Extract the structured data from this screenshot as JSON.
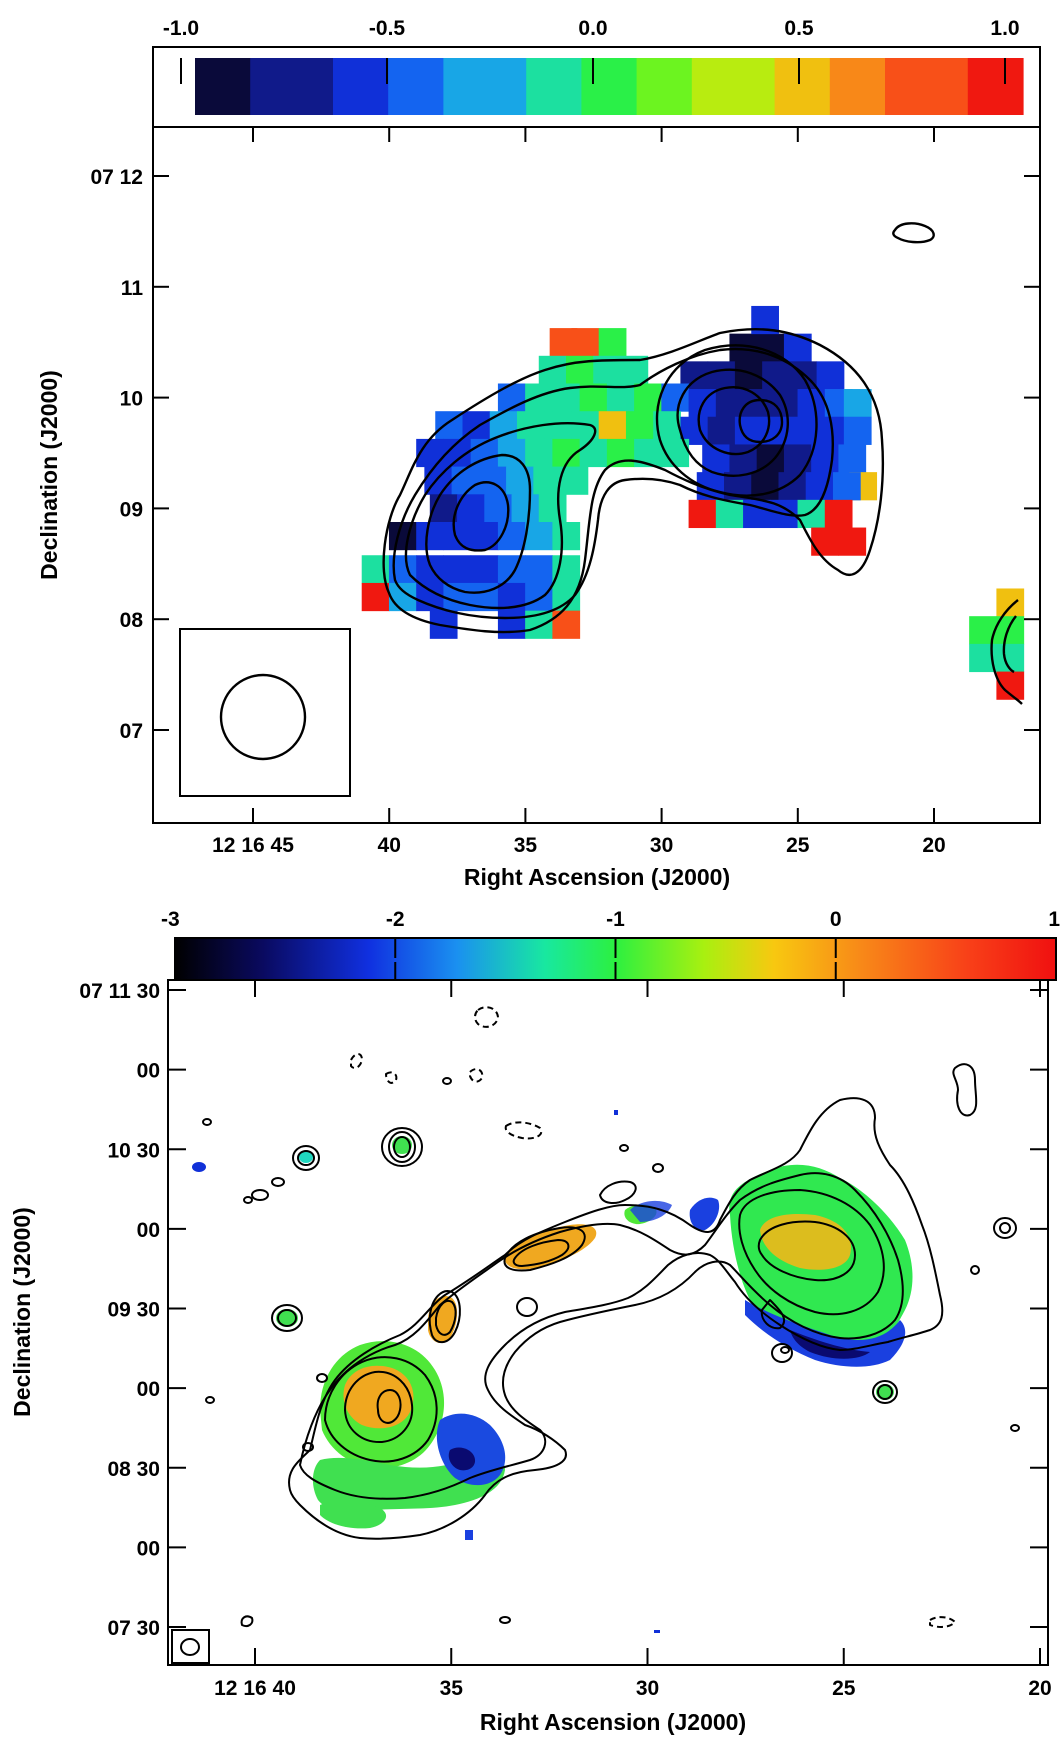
{
  "chart_data": [
    {
      "type": "heatmap",
      "title": "",
      "xlabel": "Right Ascension (J2000)",
      "ylabel": "Declination (J2000)",
      "colorbar": {
        "ticks": [
          "-1.0",
          "-0.5",
          "0.0",
          "0.5",
          "1.0"
        ],
        "tick_values": [
          -1.0,
          -0.5,
          0.0,
          0.5,
          1.0
        ],
        "range": [
          -1.0,
          1.0
        ],
        "colormap": [
          "#0a0a3a",
          "#101a8a",
          "#1030d8",
          "#1464f0",
          "#18a6e6",
          "#1ce0a0",
          "#2af048",
          "#6cf420",
          "#b8ec10",
          "#f0c010",
          "#f88818",
          "#f85018",
          "#f01810"
        ]
      },
      "x_ticks": [
        "12 16 45",
        "40",
        "35",
        "30",
        "25",
        "20"
      ],
      "x_tick_seconds": [
        45,
        40,
        35,
        30,
        25,
        20
      ],
      "xlim_seconds": [
        49,
        17
      ],
      "y_ticks": [
        "07 12",
        "11",
        "10",
        "09",
        "08",
        "07"
      ],
      "y_tick_arcmin": [
        12,
        11,
        10,
        9,
        8,
        7
      ],
      "ylim_arcmin": [
        6.2,
        12.4
      ],
      "grid": false,
      "pixel_map_note": "spectral index values in colorbar units",
      "pixels": [
        [
          33.6,
          10.5,
          0.75
        ],
        [
          32.8,
          10.5,
          0.75
        ],
        [
          31.8,
          10.5,
          0.05
        ],
        [
          34.0,
          10.25,
          -0.1
        ],
        [
          33.0,
          10.25,
          -0.05
        ],
        [
          32.0,
          10.25,
          -0.1
        ],
        [
          31.0,
          10.25,
          -0.15
        ],
        [
          27.0,
          10.45,
          -0.95
        ],
        [
          26.0,
          10.45,
          -0.85
        ],
        [
          25.0,
          10.45,
          -0.6
        ],
        [
          26.2,
          10.7,
          -0.65
        ],
        [
          28.8,
          10.2,
          -0.8
        ],
        [
          27.8,
          10.2,
          -0.75
        ],
        [
          26.8,
          10.2,
          -0.9
        ],
        [
          25.8,
          10.2,
          -0.75
        ],
        [
          24.8,
          10.2,
          -0.7
        ],
        [
          23.8,
          10.2,
          -0.55
        ],
        [
          35.5,
          10.0,
          -0.45
        ],
        [
          34.5,
          10.0,
          -0.15
        ],
        [
          33.5,
          10.0,
          -0.1
        ],
        [
          32.5,
          10.0,
          -0.05
        ],
        [
          31.5,
          10.0,
          -0.15
        ],
        [
          30.5,
          10.0,
          0.05
        ],
        [
          29.5,
          10.0,
          -0.5
        ],
        [
          28.5,
          9.95,
          -0.55
        ],
        [
          27.5,
          9.95,
          -0.7
        ],
        [
          26.5,
          9.95,
          -0.75
        ],
        [
          25.5,
          9.95,
          -0.7
        ],
        [
          24.5,
          9.95,
          -0.55
        ],
        [
          23.5,
          9.95,
          -0.45
        ],
        [
          22.8,
          9.95,
          -0.35
        ],
        [
          37.8,
          9.75,
          -0.5
        ],
        [
          36.8,
          9.75,
          -0.55
        ],
        [
          35.8,
          9.75,
          -0.3
        ],
        [
          34.8,
          9.75,
          -0.15
        ],
        [
          33.8,
          9.75,
          -0.1
        ],
        [
          32.8,
          9.75,
          -0.15
        ],
        [
          31.8,
          9.75,
          0.5
        ],
        [
          30.8,
          9.75,
          0.05
        ],
        [
          29.8,
          9.75,
          -0.1
        ],
        [
          28.8,
          9.7,
          -0.6
        ],
        [
          27.8,
          9.7,
          -0.75
        ],
        [
          26.8,
          9.7,
          -0.65
        ],
        [
          25.8,
          9.7,
          -0.6
        ],
        [
          24.8,
          9.7,
          -0.65
        ],
        [
          23.8,
          9.7,
          -0.55
        ],
        [
          22.8,
          9.7,
          -0.45
        ],
        [
          38.5,
          9.5,
          -0.6
        ],
        [
          37.5,
          9.5,
          -0.55
        ],
        [
          36.5,
          9.5,
          -0.45
        ],
        [
          35.5,
          9.5,
          -0.25
        ],
        [
          34.5,
          9.5,
          -0.1
        ],
        [
          33.5,
          9.5,
          -0.05
        ],
        [
          32.5,
          9.5,
          -0.1
        ],
        [
          31.5,
          9.5,
          0.05
        ],
        [
          30.5,
          9.5,
          -0.1
        ],
        [
          29.5,
          9.5,
          -0.15
        ],
        [
          28.0,
          9.45,
          -0.6
        ],
        [
          27.0,
          9.45,
          -0.75
        ],
        [
          26.0,
          9.45,
          -0.85
        ],
        [
          25.0,
          9.45,
          -0.7
        ],
        [
          24.0,
          9.45,
          -0.6
        ],
        [
          23.0,
          9.45,
          -0.45
        ],
        [
          22.6,
          9.2,
          0.5
        ],
        [
          38.2,
          9.25,
          -0.55
        ],
        [
          37.2,
          9.25,
          -0.5
        ],
        [
          36.2,
          9.25,
          -0.4
        ],
        [
          35.2,
          9.25,
          -0.3
        ],
        [
          34.2,
          9.25,
          -0.2
        ],
        [
          33.2,
          9.25,
          -0.1
        ],
        [
          28.2,
          9.2,
          -0.6
        ],
        [
          27.2,
          9.2,
          -0.7
        ],
        [
          26.2,
          9.2,
          -0.95
        ],
        [
          25.2,
          9.2,
          -0.75
        ],
        [
          24.2,
          9.2,
          -0.6
        ],
        [
          23.2,
          9.2,
          -0.5
        ],
        [
          38.0,
          9.0,
          -0.7
        ],
        [
          37.0,
          9.0,
          -0.6
        ],
        [
          36.0,
          9.0,
          -0.45
        ],
        [
          35.0,
          9.0,
          -0.35
        ],
        [
          34.0,
          9.0,
          -0.2
        ],
        [
          28.5,
          8.95,
          0.9
        ],
        [
          27.5,
          8.95,
          -0.1
        ],
        [
          26.5,
          8.95,
          -0.6
        ],
        [
          25.5,
          8.95,
          -0.55
        ],
        [
          24.5,
          8.95,
          -0.2
        ],
        [
          23.5,
          8.95,
          0.9
        ],
        [
          39.5,
          8.75,
          -0.95
        ],
        [
          38.5,
          8.75,
          -0.65
        ],
        [
          37.5,
          8.75,
          -0.6
        ],
        [
          36.5,
          8.75,
          -0.55
        ],
        [
          35.5,
          8.75,
          -0.45
        ],
        [
          34.5,
          8.75,
          -0.3
        ],
        [
          33.5,
          8.75,
          -0.15
        ],
        [
          24.0,
          8.7,
          0.95
        ],
        [
          23.0,
          8.7,
          0.95
        ],
        [
          40.5,
          8.45,
          -0.15
        ],
        [
          39.5,
          8.45,
          -0.5
        ],
        [
          38.5,
          8.45,
          -0.55
        ],
        [
          37.5,
          8.45,
          -0.6
        ],
        [
          36.5,
          8.45,
          -0.6
        ],
        [
          35.5,
          8.45,
          -0.5
        ],
        [
          34.5,
          8.45,
          -0.4
        ],
        [
          33.5,
          8.45,
          -0.15
        ],
        [
          40.5,
          8.2,
          0.85
        ],
        [
          39.5,
          8.2,
          -0.3
        ],
        [
          38.5,
          8.2,
          -0.6
        ],
        [
          37.5,
          8.2,
          -0.5
        ],
        [
          36.5,
          8.2,
          -0.5
        ],
        [
          35.5,
          8.2,
          -0.55
        ],
        [
          34.5,
          8.2,
          -0.4
        ],
        [
          33.5,
          8.2,
          -0.1
        ],
        [
          38.0,
          7.95,
          -0.55
        ],
        [
          35.5,
          7.95,
          -0.6
        ],
        [
          34.5,
          7.95,
          -0.1
        ],
        [
          33.5,
          7.95,
          0.7
        ],
        [
          17.2,
          8.15,
          0.5
        ],
        [
          18.2,
          7.9,
          -0.05
        ],
        [
          17.2,
          7.9,
          -0.05
        ],
        [
          18.2,
          7.65,
          -0.1
        ],
        [
          17.2,
          7.65,
          -0.1
        ],
        [
          17.2,
          7.4,
          0.85
        ]
      ]
    },
    {
      "type": "heatmap",
      "title": "",
      "xlabel": "Right Ascension (J2000)",
      "ylabel": "Declination (J2000)",
      "colorbar": {
        "ticks": [
          "-3",
          "-2",
          "-1",
          "0",
          "1"
        ],
        "tick_values": [
          -3,
          -2,
          -1,
          0,
          1
        ],
        "range": [
          -3,
          1
        ]
      },
      "x_ticks": [
        "12 16 40",
        "35",
        "30",
        "25",
        "20"
      ],
      "x_tick_seconds": [
        40,
        35,
        30,
        25,
        20
      ],
      "y_ticks": [
        "07 11 30",
        "00",
        "10 30",
        "00",
        "09 30",
        "00",
        "08 30",
        "00",
        "07 30"
      ],
      "grid": false
    }
  ]
}
